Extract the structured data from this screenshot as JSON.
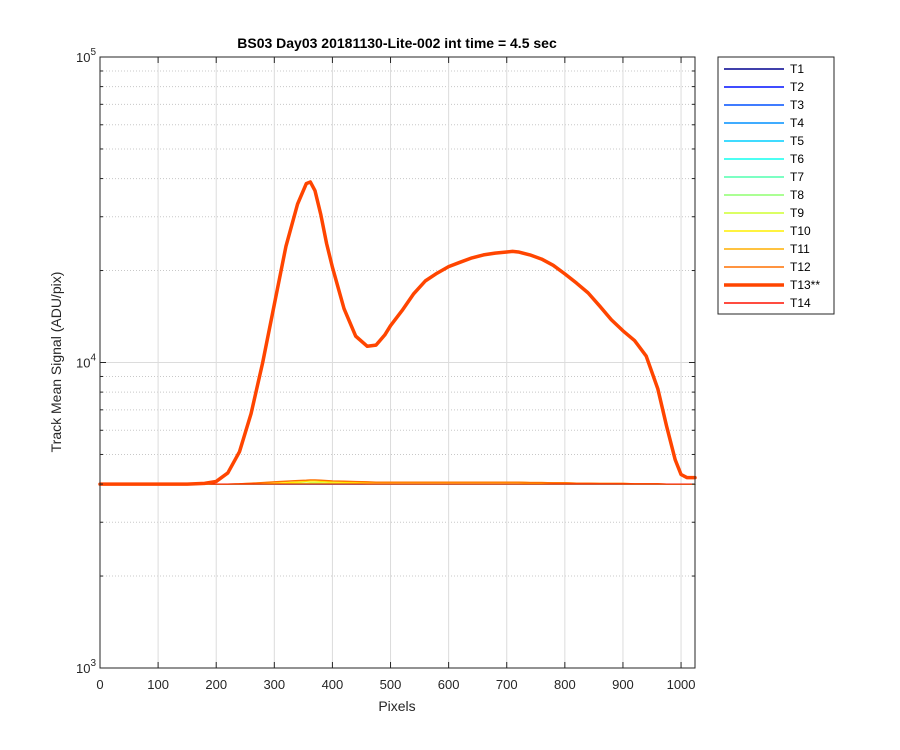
{
  "chart_data": {
    "type": "line",
    "title": "BS03 Day03 20181130-Lite-002 int time = 4.5 sec",
    "xlabel": "Pixels",
    "ylabel": "Track Mean Signal (ADU/pix)",
    "xlim": [
      0,
      1024
    ],
    "ylim": [
      1000,
      100000
    ],
    "yscale": "log",
    "grid": true,
    "legend_position": "outside-right",
    "x_ticks": [
      "0",
      "100",
      "200",
      "300",
      "400",
      "500",
      "600",
      "700",
      "800",
      "900",
      "1000"
    ],
    "y_ticks": [
      {
        "base": "10",
        "exp": "3",
        "value": 1000
      },
      {
        "base": "10",
        "exp": "4",
        "value": 10000
      },
      {
        "base": "10",
        "exp": "5",
        "value": 100000
      }
    ],
    "x": [
      0,
      100,
      150,
      180,
      200,
      220,
      240,
      260,
      280,
      300,
      320,
      340,
      355,
      362,
      370,
      380,
      390,
      400,
      420,
      440,
      460,
      475,
      490,
      500,
      520,
      540,
      560,
      580,
      600,
      620,
      640,
      660,
      680,
      700,
      710,
      720,
      740,
      760,
      780,
      800,
      820,
      840,
      860,
      880,
      900,
      920,
      940,
      960,
      975,
      990,
      1000,
      1010,
      1018,
      1024
    ],
    "series": [
      {
        "name": "T1",
        "color": "#00008f",
        "values": [
          4000,
          4000,
          4000,
          4000,
          4000,
          4000,
          4000,
          4000,
          4000,
          4000,
          4000,
          4000,
          4000,
          4000,
          4000,
          4000,
          4000,
          4000,
          4000,
          4000,
          4000,
          4000,
          4000,
          4000,
          4000,
          4000,
          4000,
          4000,
          4000,
          4000,
          4000,
          4000,
          4000,
          4000,
          4000,
          4000,
          4000,
          4000,
          4000,
          4000,
          4000,
          4000,
          4000,
          4000,
          4000,
          4000,
          4000,
          4000,
          4000,
          4000,
          4000,
          4000,
          4000,
          4000
        ]
      },
      {
        "name": "T2",
        "color": "#0010ff",
        "values": [
          4000,
          4000,
          4000,
          4000,
          4000,
          4000,
          4000,
          4000,
          4000,
          4000,
          4000,
          4000,
          4000,
          4000,
          4000,
          4000,
          4000,
          4000,
          4000,
          4000,
          4000,
          4000,
          4000,
          4000,
          4000,
          4000,
          4000,
          4000,
          4000,
          4000,
          4000,
          4000,
          4000,
          4000,
          4000,
          4000,
          4000,
          4000,
          4000,
          4000,
          4000,
          4000,
          4000,
          4000,
          4000,
          4000,
          4000,
          4000,
          4000,
          4000,
          4000,
          4000,
          4000,
          4000
        ]
      },
      {
        "name": "T3",
        "color": "#0050ff",
        "values": [
          4000,
          4000,
          4000,
          4000,
          4000,
          4000,
          4000,
          4000,
          4000,
          4000,
          4000,
          4000,
          4000,
          4000,
          4000,
          4000,
          4000,
          4000,
          4000,
          4000,
          4000,
          4000,
          4000,
          4000,
          4000,
          4000,
          4000,
          4000,
          4000,
          4000,
          4000,
          4000,
          4000,
          4000,
          4000,
          4000,
          4000,
          4000,
          4000,
          4000,
          4000,
          4000,
          4000,
          4000,
          4000,
          4000,
          4000,
          4000,
          4000,
          4000,
          4000,
          4000,
          4000,
          4000
        ]
      },
      {
        "name": "T4",
        "color": "#0090ff",
        "values": [
          4000,
          4000,
          4000,
          4000,
          4000,
          4000,
          4000,
          4000,
          4000,
          4000,
          4000,
          4000,
          4000,
          4000,
          4000,
          4000,
          4000,
          4000,
          4000,
          4000,
          4000,
          4000,
          4000,
          4000,
          4000,
          4000,
          4000,
          4000,
          4000,
          4000,
          4000,
          4000,
          4000,
          4000,
          4000,
          4000,
          4000,
          4000,
          4000,
          4000,
          4000,
          4000,
          4000,
          4000,
          4000,
          4000,
          4000,
          4000,
          4000,
          4000,
          4000,
          4000,
          4000,
          4000
        ]
      },
      {
        "name": "T5",
        "color": "#00cfff",
        "values": [
          4000,
          4000,
          4000,
          4000,
          4000,
          4000,
          4000,
          4000,
          4000,
          4000,
          4000,
          4000,
          4000,
          4000,
          4000,
          4000,
          4000,
          4000,
          4000,
          4000,
          4000,
          4000,
          4000,
          4000,
          4000,
          4000,
          4000,
          4000,
          4000,
          4000,
          4000,
          4000,
          4000,
          4000,
          4000,
          4000,
          4000,
          4000,
          4000,
          4000,
          4000,
          4000,
          4000,
          4000,
          4000,
          4000,
          4000,
          4000,
          4000,
          4000,
          4000,
          4000,
          4000,
          4000
        ]
      },
      {
        "name": "T6",
        "color": "#10ffef",
        "values": [
          4000,
          4000,
          4000,
          4000,
          4000,
          4000,
          4000,
          4000,
          4000,
          4000,
          4000,
          4000,
          4000,
          4000,
          4000,
          4000,
          4000,
          4000,
          4000,
          4000,
          4000,
          4000,
          4000,
          4000,
          4000,
          4000,
          4000,
          4000,
          4000,
          4000,
          4000,
          4000,
          4000,
          4000,
          4000,
          4000,
          4000,
          4000,
          4000,
          4000,
          4000,
          4000,
          4000,
          4000,
          4000,
          4000,
          4000,
          4000,
          4000,
          4000,
          4000,
          4000,
          4000,
          4000
        ]
      },
      {
        "name": "T7",
        "color": "#50ffaf",
        "values": [
          4000,
          4000,
          4000,
          4000,
          4000,
          4000,
          4000,
          4000,
          4000,
          4000,
          4000,
          4000,
          4000,
          4000,
          4000,
          4000,
          4000,
          4000,
          4000,
          4000,
          4000,
          4000,
          4000,
          4000,
          4000,
          4000,
          4000,
          4000,
          4000,
          4000,
          4000,
          4000,
          4000,
          4000,
          4000,
          4000,
          4000,
          4000,
          4000,
          4000,
          4000,
          4000,
          4000,
          4000,
          4000,
          4000,
          4000,
          4000,
          4000,
          4000,
          4000,
          4000,
          4000,
          4000
        ]
      },
      {
        "name": "T8",
        "color": "#8fff70",
        "values": [
          4000,
          4000,
          4000,
          4000,
          4000,
          4000,
          4000,
          4000,
          4000,
          4000,
          4010,
          4020,
          4030,
          4030,
          4030,
          4030,
          4020,
          4020,
          4010,
          4010,
          4000,
          4000,
          4000,
          4000,
          4000,
          4000,
          4000,
          4000,
          4000,
          4000,
          4000,
          4000,
          4000,
          4000,
          4000,
          4000,
          4000,
          4000,
          4000,
          4000,
          4000,
          4000,
          4000,
          4000,
          4000,
          4000,
          4000,
          4000,
          4000,
          4000,
          4000,
          4000,
          4000,
          4000
        ]
      },
      {
        "name": "T9",
        "color": "#cfff30",
        "values": [
          4000,
          4000,
          4000,
          4000,
          4000,
          4000,
          4000,
          4000,
          4000,
          4000,
          4010,
          4020,
          4030,
          4040,
          4040,
          4040,
          4030,
          4020,
          4010,
          4010,
          4000,
          4000,
          4000,
          4000,
          4000,
          4000,
          4000,
          4000,
          4000,
          4000,
          4000,
          4000,
          4000,
          4000,
          4000,
          4000,
          4000,
          4000,
          4000,
          4000,
          4000,
          4000,
          4000,
          4000,
          4000,
          4000,
          4000,
          4000,
          4000,
          4000,
          4000,
          4000,
          4000,
          4000
        ]
      },
      {
        "name": "T10",
        "color": "#ffef00",
        "values": [
          4000,
          4000,
          4000,
          4000,
          4000,
          4000,
          4000,
          4000,
          4010,
          4020,
          4040,
          4060,
          4080,
          4090,
          4090,
          4080,
          4070,
          4060,
          4050,
          4040,
          4040,
          4040,
          4040,
          4040,
          4040,
          4040,
          4040,
          4040,
          4040,
          4040,
          4040,
          4040,
          4040,
          4040,
          4040,
          4040,
          4030,
          4030,
          4030,
          4020,
          4020,
          4010,
          4010,
          4010,
          4000,
          4000,
          4000,
          4000,
          4000,
          4000,
          4000,
          4000,
          4000,
          4000
        ]
      },
      {
        "name": "T11",
        "color": "#ffaf00",
        "values": [
          4000,
          4000,
          4000,
          4000,
          4000,
          4000,
          4010,
          4020,
          4040,
          4060,
          4080,
          4100,
          4110,
          4120,
          4120,
          4110,
          4100,
          4090,
          4080,
          4070,
          4060,
          4060,
          4060,
          4060,
          4060,
          4060,
          4060,
          4060,
          4060,
          4060,
          4060,
          4060,
          4060,
          4060,
          4060,
          4060,
          4050,
          4050,
          4040,
          4040,
          4030,
          4030,
          4020,
          4020,
          4020,
          4010,
          4010,
          4010,
          4000,
          4000,
          4000,
          4000,
          4000,
          4000
        ]
      },
      {
        "name": "T12",
        "color": "#ff7000",
        "values": [
          4000,
          4000,
          4000,
          4000,
          4000,
          4000,
          4010,
          4030,
          4050,
          4070,
          4090,
          4110,
          4120,
          4130,
          4130,
          4120,
          4110,
          4100,
          4090,
          4080,
          4070,
          4060,
          4060,
          4060,
          4060,
          4060,
          4060,
          4060,
          4060,
          4060,
          4060,
          4060,
          4060,
          4060,
          4060,
          4060,
          4050,
          4050,
          4040,
          4040,
          4030,
          4030,
          4020,
          4020,
          4020,
          4010,
          4010,
          4010,
          4000,
          4000,
          4000,
          4000,
          4000,
          4000
        ]
      },
      {
        "name": "T13**",
        "color": "#ff4500",
        "bold": true,
        "values": [
          4000,
          4000,
          4000,
          4020,
          4080,
          4350,
          5100,
          6800,
          10000,
          15500,
          24000,
          33000,
          38500,
          39000,
          36500,
          30500,
          24500,
          20500,
          15000,
          12200,
          11300,
          11400,
          12300,
          13200,
          14800,
          16800,
          18500,
          19600,
          20600,
          21300,
          22000,
          22500,
          22800,
          23000,
          23100,
          23000,
          22500,
          21800,
          20800,
          19500,
          18200,
          16900,
          15300,
          13800,
          12700,
          11800,
          10500,
          8200,
          6200,
          4800,
          4300,
          4200,
          4200,
          4200
        ]
      },
      {
        "name": "T14",
        "color": "#ff1000",
        "values": [
          4000,
          4000,
          4000,
          4000,
          4000,
          4000,
          4000,
          4000,
          4000,
          4000,
          4000,
          4000,
          4000,
          4000,
          4000,
          4000,
          4000,
          4000,
          4000,
          4000,
          4000,
          4000,
          4000,
          4000,
          4000,
          4000,
          4000,
          4000,
          4000,
          4000,
          4000,
          4000,
          4000,
          4000,
          4000,
          4000,
          4000,
          4000,
          4000,
          4000,
          4000,
          4000,
          4000,
          4000,
          4000,
          4000,
          4000,
          4000,
          4000,
          4000,
          4000,
          4000,
          4000,
          4000
        ]
      }
    ]
  }
}
